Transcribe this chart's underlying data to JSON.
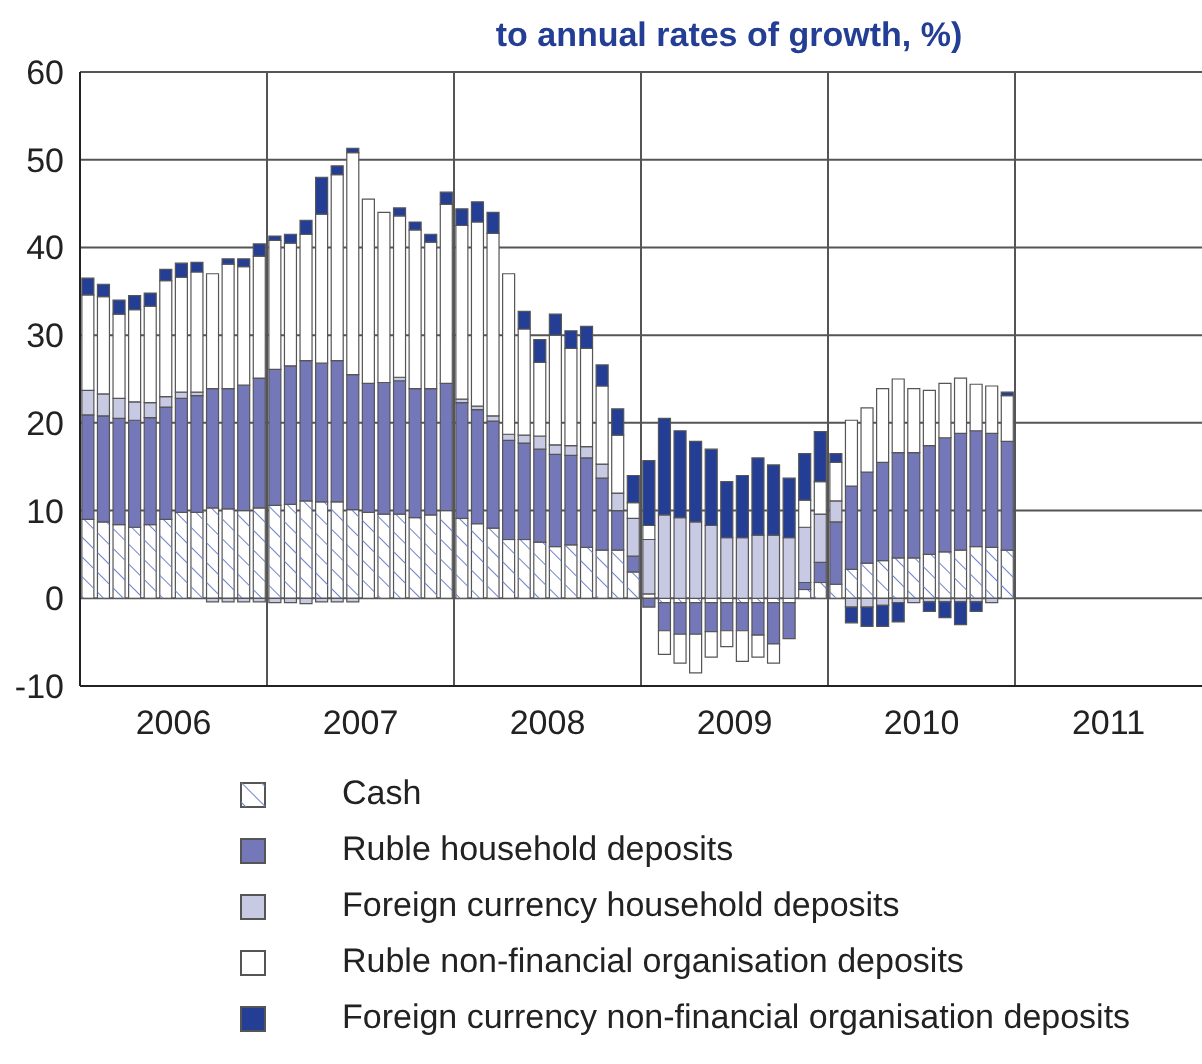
{
  "chart_data": {
    "type": "bar",
    "title": "to annual rates of growth, %)",
    "stacked": true,
    "grid": true,
    "legend": "bottom",
    "categories": [
      null,
      null,
      null,
      null,
      null,
      null,
      "2006",
      null,
      null,
      null,
      null,
      null,
      null,
      null,
      null,
      null,
      null,
      null,
      "2007",
      null,
      null,
      null,
      null,
      null,
      null,
      null,
      null,
      null,
      null,
      null,
      "2008",
      null,
      null,
      null,
      null,
      null,
      null,
      null,
      null,
      null,
      null,
      null,
      "2009",
      null,
      null,
      null,
      null,
      null,
      null,
      null,
      null,
      null,
      null,
      null,
      "2010",
      null,
      null,
      null,
      null,
      null,
      null,
      null,
      null,
      null,
      null,
      null,
      "2011",
      null,
      null,
      null,
      null,
      null
    ],
    "ylim": [
      -10,
      60
    ],
    "yticks": [
      -10,
      0,
      10,
      20,
      30,
      40,
      50,
      60
    ],
    "series": [
      {
        "name": "Cash",
        "color": "#ffffff",
        "values": [
          9.0,
          8.7,
          8.4,
          8.1,
          8.4,
          9.0,
          9.8,
          9.8,
          10.3,
          10.2,
          10.0,
          10.3,
          10.6,
          10.7,
          11.1,
          11.0,
          11.0,
          10.1,
          9.8,
          9.6,
          9.6,
          9.2,
          9.5,
          10.0,
          9.1,
          8.5,
          8.0,
          6.7,
          6.7,
          6.4,
          5.9,
          6.1,
          5.8,
          5.5,
          5.5,
          3.0,
          0.5,
          -0.5,
          -0.5,
          -0.5,
          -0.5,
          -0.5,
          -0.5,
          -0.5,
          -0.5,
          -0.5,
          1.0,
          1.8,
          1.6,
          3.3,
          4.0,
          4.3,
          4.6,
          4.6,
          5.0,
          5.3,
          5.5,
          5.9,
          5.8,
          5.5,
          null,
          null,
          null,
          null,
          null,
          null,
          null,
          null,
          null,
          null,
          null,
          null
        ]
      },
      {
        "name": "Ruble household deposits",
        "color": "#7477b8",
        "values": [
          11.9,
          12.1,
          12.1,
          12.2,
          12.2,
          12.8,
          13.0,
          13.3,
          13.6,
          13.7,
          14.3,
          14.8,
          15.5,
          15.8,
          16.0,
          15.8,
          16.1,
          15.4,
          14.7,
          15.0,
          15.2,
          14.7,
          14.4,
          14.5,
          13.2,
          13.0,
          12.2,
          11.3,
          11.0,
          10.6,
          10.5,
          10.2,
          10.2,
          8.2,
          4.5,
          1.8,
          -1.0,
          -3.2,
          -3.6,
          -3.6,
          -3.3,
          -3.2,
          -3.2,
          -3.7,
          -4.7,
          -4.1,
          0.8,
          2.3,
          7.1,
          9.5,
          10.4,
          11.2,
          12.0,
          12.0,
          12.4,
          13.0,
          13.3,
          13.2,
          13.0,
          12.4,
          null,
          null,
          null,
          null,
          null,
          null,
          null,
          null,
          null,
          null,
          null,
          null
        ]
      },
      {
        "name": "Foreign currency household deposits",
        "color": "#c8c9e3",
        "values": [
          2.8,
          2.5,
          2.3,
          2.1,
          1.7,
          1.2,
          0.7,
          0.4,
          -0.4,
          -0.4,
          -0.4,
          -0.4,
          -0.5,
          -0.5,
          -0.6,
          -0.4,
          -0.4,
          -0.4,
          0,
          0,
          0.4,
          0,
          0,
          0,
          0.4,
          0.4,
          0.6,
          0.7,
          0.9,
          1.5,
          1.1,
          1.1,
          1.3,
          1.6,
          2.0,
          4.3,
          6.2,
          9.5,
          9.2,
          8.7,
          8.3,
          6.9,
          6.9,
          7.2,
          7.2,
          6.9,
          6.3,
          5.5,
          2.4,
          -1.0,
          -1.0,
          -0.8,
          -0.5,
          -0.5,
          -0.4,
          -0.4,
          -0.4,
          -0.4,
          -0.5,
          0,
          null,
          null,
          null,
          null,
          null,
          null,
          null,
          null,
          null,
          null,
          null,
          null
        ]
      },
      {
        "name": "Ruble non-financial organisation deposits",
        "color": "#ffffff",
        "values": [
          10.9,
          11.1,
          9.6,
          10.5,
          11.0,
          13.2,
          13.1,
          13.7,
          13.1,
          14.2,
          13.5,
          13.9,
          14.7,
          14.0,
          14.4,
          17.0,
          21.2,
          25.3,
          21.0,
          19.4,
          18.4,
          18.1,
          16.7,
          20.4,
          19.8,
          21.0,
          20.8,
          18.3,
          12.1,
          8.4,
          12.5,
          11.1,
          11.2,
          8.9,
          6.6,
          1.8,
          1.6,
          -2.7,
          -3.3,
          -4.4,
          -2.9,
          -1.8,
          -3.5,
          -2.5,
          -2.2,
          0,
          3.1,
          3.7,
          4.4,
          7.5,
          7.3,
          8.4,
          8.4,
          7.3,
          6.3,
          6.2,
          6.3,
          5.3,
          5.4,
          5.2,
          null,
          null,
          null,
          null,
          null,
          null,
          null,
          null,
          null,
          null,
          null,
          null
        ]
      },
      {
        "name": "Foreign currency non-financial organisation deposits",
        "color": "#233e94",
        "values": [
          1.9,
          1.4,
          1.6,
          1.6,
          1.5,
          1.3,
          1.6,
          1.1,
          0,
          0.6,
          0.9,
          1.4,
          0.5,
          1.0,
          1.6,
          4.2,
          1.0,
          0.5,
          0,
          0,
          0.9,
          0.9,
          0.9,
          1.4,
          1.9,
          2.3,
          2.4,
          0,
          2.0,
          2.6,
          2.4,
          2.0,
          2.5,
          2.4,
          3.0,
          3.1,
          7.4,
          11.0,
          9.9,
          9.2,
          8.7,
          6.4,
          7.1,
          8.8,
          8.0,
          6.8,
          5.3,
          5.7,
          1.0,
          -1.8,
          -2.2,
          -2.4,
          -2.2,
          0,
          -1.1,
          -1.8,
          -2.6,
          -1.1,
          0,
          0.4,
          null,
          null,
          null,
          null,
          null,
          null,
          null,
          null,
          null,
          null,
          null,
          null
        ]
      }
    ]
  }
}
